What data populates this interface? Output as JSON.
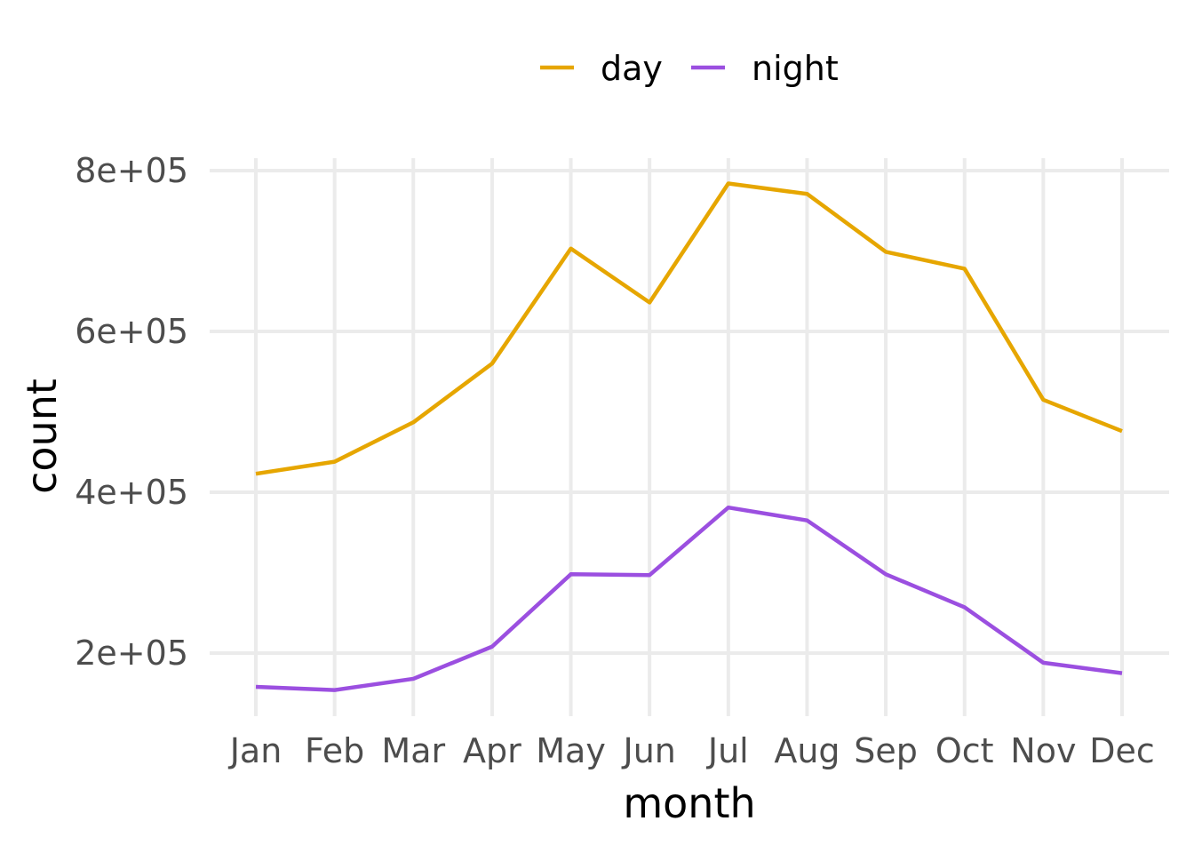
{
  "chart_data": {
    "type": "line",
    "title": "",
    "xlabel": "month",
    "ylabel": "count",
    "categories": [
      "Jan",
      "Feb",
      "Mar",
      "Apr",
      "May",
      "Jun",
      "Jul",
      "Aug",
      "Sep",
      "Oct",
      "Nov",
      "Dec"
    ],
    "y_ticks": [
      200000,
      400000,
      600000,
      800000
    ],
    "y_tick_labels": [
      "2e+05",
      "4e+05",
      "6e+05",
      "8e+05"
    ],
    "ylim": [
      126000,
      815000
    ],
    "grid": true,
    "legend_position": "top",
    "series": [
      {
        "name": "day",
        "color": "#E6A600",
        "values": [
          423000,
          438000,
          487000,
          560000,
          703000,
          636000,
          784000,
          771000,
          699000,
          678000,
          515000,
          476000
        ]
      },
      {
        "name": "night",
        "color": "#9B4FE0",
        "values": [
          158000,
          154000,
          168000,
          208000,
          298000,
          297000,
          381000,
          365000,
          298000,
          257000,
          188000,
          175000
        ]
      }
    ]
  }
}
